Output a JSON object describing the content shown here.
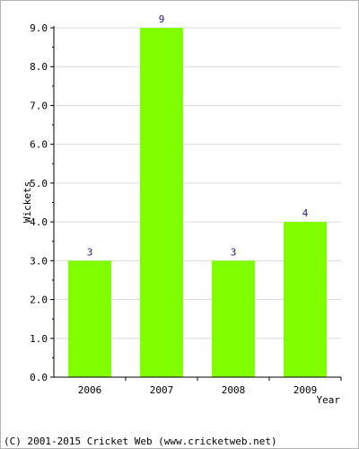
{
  "copyright": "(C) 2001-2015 Cricket Web (www.cricketweb.net)",
  "chart_data": {
    "type": "bar",
    "categories": [
      "2006",
      "2007",
      "2008",
      "2009"
    ],
    "values": [
      3,
      9,
      3,
      4
    ],
    "data_labels": [
      "3",
      "9",
      "3",
      "4"
    ],
    "xlabel": "Year",
    "ylabel": "Wickets",
    "ylim": [
      0,
      9
    ],
    "y_ticks": [
      "0.0",
      "1.0",
      "2.0",
      "3.0",
      "4.0",
      "5.0",
      "6.0",
      "7.0",
      "8.0",
      "9.0"
    ],
    "grid": true,
    "colors": {
      "bar": "#80ff00",
      "grid": "#dcdcdc",
      "axis": "#000000",
      "data_label": "#1a1a8c"
    }
  }
}
